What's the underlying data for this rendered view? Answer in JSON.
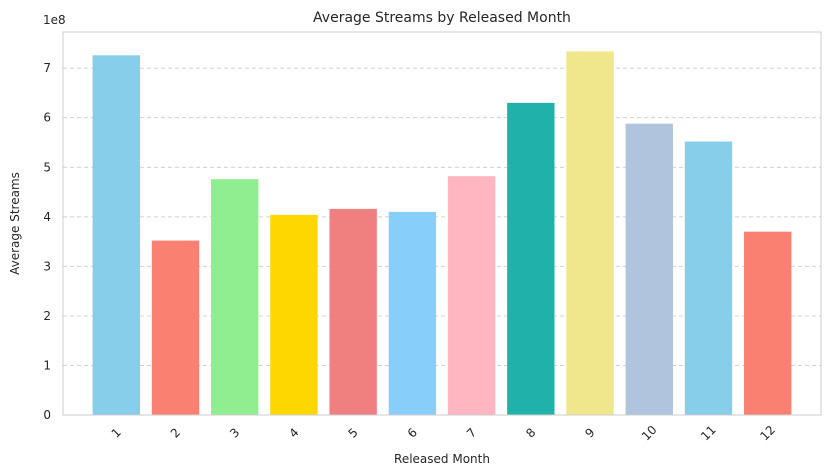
{
  "chart_data": {
    "type": "bar",
    "title": "Average Streams by Released Month",
    "xlabel": "Released Month",
    "ylabel": "Average Streams",
    "y_scale_label": "1e8",
    "categories": [
      "1",
      "2",
      "3",
      "4",
      "5",
      "6",
      "7",
      "8",
      "9",
      "10",
      "11",
      "12"
    ],
    "values": [
      726000000,
      352000000,
      476000000,
      404000000,
      416000000,
      410000000,
      482000000,
      630000000,
      734000000,
      588000000,
      552000000,
      370000000
    ],
    "colors": [
      "#87CEEB",
      "#FA8072",
      "#90EE90",
      "#FFD700",
      "#F08080",
      "#87CEFA",
      "#FFB6C1",
      "#20B2AA",
      "#F0E68C",
      "#B0C4DE",
      "#87CEEB",
      "#FA8072"
    ],
    "yticks": [
      0,
      1,
      2,
      3,
      4,
      5,
      6,
      7
    ],
    "ytick_multiplier": 100000000,
    "ylim": [
      0,
      773000000
    ],
    "grid": "y-dashed",
    "legend": "none"
  }
}
